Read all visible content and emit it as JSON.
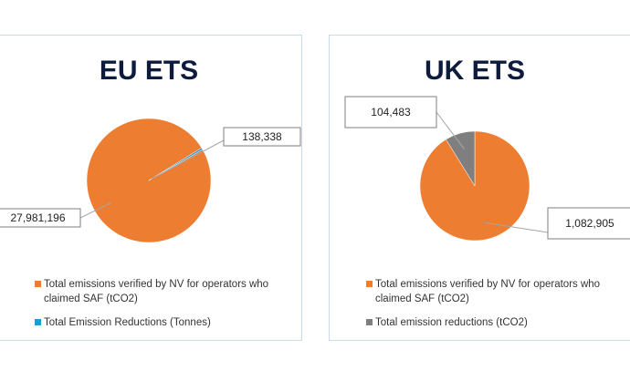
{
  "chart_data": [
    {
      "type": "pie",
      "title": "EU ETS",
      "categories": [
        "Total emissions verified by NV for operators who claimed SAF (tCO2)",
        "Total Emission Reductions (Tonnes)"
      ],
      "values": [
        27981196,
        138338
      ],
      "value_labels": [
        "27,981,196",
        "138,338"
      ],
      "colors": [
        "#ED7D31",
        "#1F9BD1"
      ]
    },
    {
      "type": "pie",
      "title": "UK ETS",
      "categories": [
        "Total emissions verified by NV for operators who claimed SAF (tCO2)",
        "Total emission reductions (tCO2)"
      ],
      "values": [
        1082905,
        104483
      ],
      "value_labels": [
        "1,082,905",
        "104,483"
      ],
      "colors": [
        "#ED7D31",
        "#7F7F7F"
      ]
    }
  ]
}
